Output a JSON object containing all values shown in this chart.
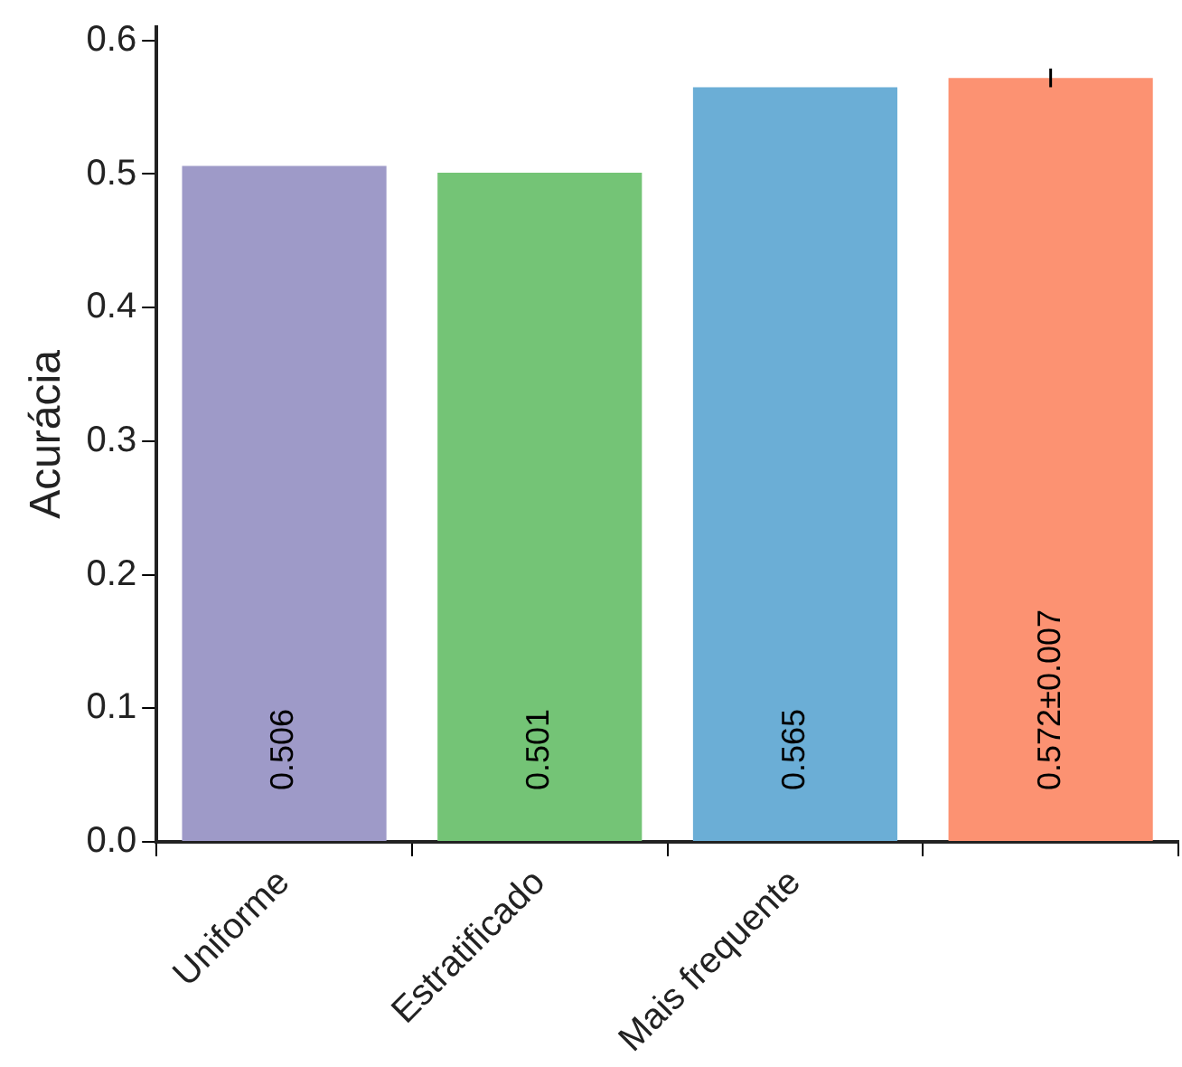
{
  "chart_data": {
    "type": "bar",
    "ylabel": "Acurácia",
    "categories": [
      "Uniforme",
      "Estratificado",
      "Mais frequente",
      null
    ],
    "values": [
      0.506,
      0.501,
      0.565,
      0.572
    ],
    "colors": [
      "#9e9ac8",
      "#74c476",
      "#6baed6",
      "#fc9272"
    ],
    "errors": [
      null,
      null,
      null,
      0.007
    ],
    "value_labels": [
      "0.506",
      "0.501",
      "0.565",
      "0.572±0.007"
    ],
    "ylim": [
      0,
      0.61
    ],
    "yticks": [
      {
        "value": 0,
        "label": "0.0"
      },
      {
        "value": 0.1,
        "label": "0.1"
      },
      {
        "value": 0.2,
        "label": "0.2"
      },
      {
        "value": 0.3,
        "label": "0.3"
      },
      {
        "value": 0.4,
        "label": "0.4"
      },
      {
        "value": 0.5,
        "label": "0.5"
      },
      {
        "value": 0.6,
        "label": "0.6"
      }
    ],
    "grid": false,
    "legend": false
  }
}
